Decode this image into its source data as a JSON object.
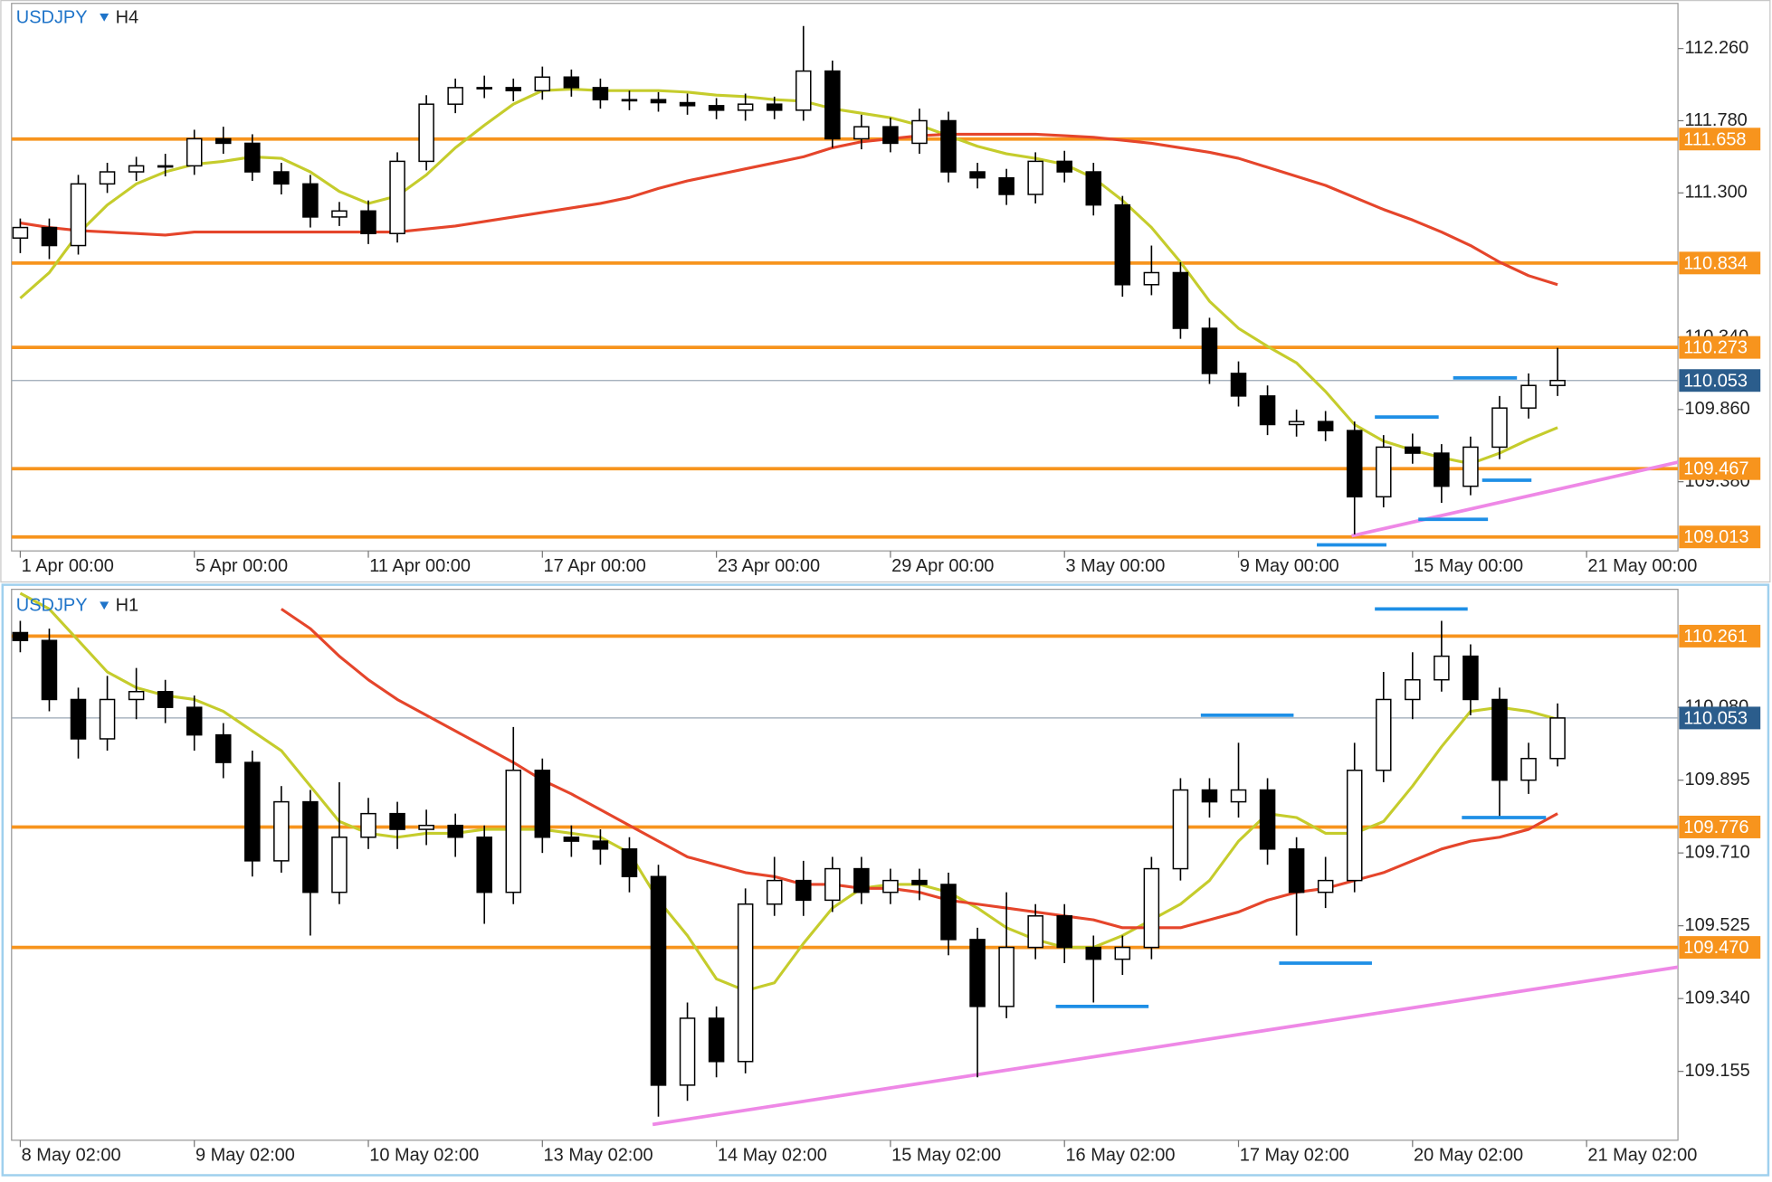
{
  "chart_data": [
    {
      "type": "candlestick",
      "symbol": "USDJPY",
      "timeframe": "H4",
      "xlim": [
        -0.3,
        57.15
      ],
      "xticks": [
        {
          "value": 0,
          "label": "1 Apr 00:00"
        },
        {
          "value": 6,
          "label": "5 Apr 00:00"
        },
        {
          "value": 12,
          "label": "11 Apr 00:00"
        },
        {
          "value": 18,
          "label": "17 Apr 00:00"
        },
        {
          "value": 24,
          "label": "23 Apr 00:00"
        },
        {
          "value": 30,
          "label": "29 Apr 00:00"
        },
        {
          "value": 36,
          "label": "3 May 00:00"
        },
        {
          "value": 42,
          "label": "9 May 00:00"
        },
        {
          "value": 48,
          "label": "15 May 00:00"
        },
        {
          "value": 54,
          "label": "21 May 00:00"
        }
      ],
      "ylim": [
        108.92,
        112.56
      ],
      "yticks": [
        {
          "value": 112.26,
          "label": "112.260"
        },
        {
          "value": 111.78,
          "label": "111.780"
        },
        {
          "value": 111.3,
          "label": "111.300"
        },
        {
          "value": 110.34,
          "label": "110.340"
        },
        {
          "value": 109.86,
          "label": "109.860"
        },
        {
          "value": 109.38,
          "label": "109.380"
        }
      ],
      "open": [
        111.0,
        111.07,
        110.95,
        111.36,
        111.44,
        111.48,
        111.48,
        111.66,
        111.63,
        111.44,
        111.36,
        111.14,
        111.18,
        111.03,
        111.51,
        111.89,
        112.0,
        112.0,
        111.98,
        112.07,
        112.0,
        111.92,
        111.92,
        111.9,
        111.88,
        111.85,
        111.89,
        111.85,
        112.11,
        111.66,
        111.74,
        111.63,
        111.78,
        111.44,
        111.4,
        111.29,
        111.51,
        111.44,
        111.22,
        110.69,
        110.77,
        110.4,
        110.1,
        109.95,
        109.76,
        109.78,
        109.72,
        109.28,
        109.61,
        109.57,
        109.35,
        109.61,
        109.87,
        110.02
      ],
      "high": [
        111.13,
        111.13,
        111.42,
        111.5,
        111.54,
        111.56,
        111.72,
        111.74,
        111.69,
        111.5,
        111.42,
        111.24,
        111.25,
        111.57,
        111.95,
        112.06,
        112.08,
        112.06,
        112.14,
        112.12,
        112.06,
        111.98,
        111.97,
        111.96,
        111.93,
        111.96,
        111.94,
        112.41,
        112.18,
        111.82,
        111.8,
        111.86,
        111.84,
        111.5,
        111.46,
        111.57,
        111.58,
        111.5,
        111.28,
        110.95,
        110.84,
        110.47,
        110.18,
        110.02,
        109.86,
        109.85,
        109.78,
        109.69,
        109.7,
        109.63,
        109.68,
        109.95,
        110.1,
        110.27
      ],
      "low": [
        110.9,
        110.86,
        110.89,
        111.3,
        111.38,
        111.41,
        111.42,
        111.56,
        111.38,
        111.29,
        111.07,
        111.08,
        110.96,
        110.97,
        111.45,
        111.83,
        111.93,
        111.91,
        111.92,
        111.94,
        111.86,
        111.85,
        111.84,
        111.82,
        111.79,
        111.78,
        111.79,
        111.78,
        111.6,
        111.59,
        111.57,
        111.56,
        111.37,
        111.33,
        111.22,
        111.23,
        111.37,
        111.15,
        110.61,
        110.62,
        110.33,
        110.03,
        109.88,
        109.69,
        109.68,
        109.65,
        109.03,
        109.21,
        109.5,
        109.24,
        109.29,
        109.53,
        109.8,
        109.95
      ],
      "close": [
        111.07,
        110.95,
        111.36,
        111.44,
        111.48,
        111.48,
        111.66,
        111.63,
        111.44,
        111.36,
        111.14,
        111.18,
        111.03,
        111.51,
        111.89,
        112.0,
        112.0,
        111.98,
        112.07,
        112.0,
        111.92,
        111.92,
        111.9,
        111.88,
        111.85,
        111.89,
        111.85,
        112.11,
        111.66,
        111.74,
        111.63,
        111.78,
        111.44,
        111.4,
        111.29,
        111.51,
        111.44,
        111.22,
        110.69,
        110.77,
        110.4,
        110.1,
        109.95,
        109.76,
        109.78,
        109.72,
        109.28,
        109.61,
        109.57,
        109.35,
        109.61,
        109.87,
        110.02,
        110.053
      ],
      "up_color": "#ffffff",
      "down_color": "#000000",
      "moving_averages": [
        {
          "color": "#c5cc2c",
          "values": [
            110.6,
            110.77,
            111.03,
            111.22,
            111.36,
            111.44,
            111.49,
            111.51,
            111.54,
            111.53,
            111.44,
            111.31,
            111.23,
            111.28,
            111.42,
            111.6,
            111.75,
            111.89,
            111.98,
            111.99,
            111.98,
            111.98,
            111.98,
            111.97,
            111.95,
            111.94,
            111.92,
            111.91,
            111.86,
            111.83,
            111.8,
            111.75,
            111.68,
            111.61,
            111.56,
            111.53,
            111.49,
            111.4,
            111.25,
            111.07,
            110.84,
            110.58,
            110.4,
            110.28,
            110.17,
            109.98,
            109.76,
            109.65,
            109.59,
            109.54,
            109.5,
            109.57,
            109.66,
            109.74
          ]
        },
        {
          "color": "#e5452b",
          "values": [
            111.1,
            111.07,
            111.05,
            111.04,
            111.03,
            111.02,
            111.04,
            111.04,
            111.04,
            111.04,
            111.04,
            111.04,
            111.04,
            111.04,
            111.06,
            111.08,
            111.11,
            111.14,
            111.17,
            111.2,
            111.23,
            111.27,
            111.33,
            111.38,
            111.42,
            111.46,
            111.5,
            111.54,
            111.6,
            111.64,
            111.66,
            111.68,
            111.69,
            111.69,
            111.69,
            111.69,
            111.68,
            111.67,
            111.65,
            111.63,
            111.6,
            111.57,
            111.53,
            111.47,
            111.41,
            111.35,
            111.27,
            111.19,
            111.12,
            111.04,
            110.95,
            110.84,
            110.75,
            110.69
          ]
        }
      ],
      "level_color": "#f7941d",
      "levels": [
        111.658,
        110.834,
        110.273,
        109.467,
        109.013
      ],
      "last": 110.053,
      "last_color": "#2b5d8c",
      "marker_color": "#1e8fe6",
      "markers": [
        {
          "value": 108.96,
          "x": [
            44.7,
            47.1
          ]
        },
        {
          "value": 109.13,
          "x": [
            48.2,
            50.6
          ]
        },
        {
          "value": 109.39,
          "x": [
            50.4,
            52.1
          ]
        },
        {
          "value": 109.81,
          "x": [
            46.7,
            48.9
          ]
        },
        {
          "value": 110.07,
          "x": [
            49.4,
            51.6
          ]
        }
      ],
      "trendline": {
        "color": "#ee88e6",
        "x": [
          45.9,
          57.15
        ],
        "y": [
          109.02,
          109.51
        ]
      }
    },
    {
      "type": "candlestick",
      "symbol": "USDJPY",
      "timeframe": "H1",
      "xlim": [
        -0.3,
        57.15
      ],
      "xticks": [
        {
          "value": 0,
          "label": "8 May 02:00"
        },
        {
          "value": 6,
          "label": "9 May 02:00"
        },
        {
          "value": 12,
          "label": "10 May 02:00"
        },
        {
          "value": 18,
          "label": "13 May 02:00"
        },
        {
          "value": 24,
          "label": "14 May 02:00"
        },
        {
          "value": 30,
          "label": "15 May 02:00"
        },
        {
          "value": 36,
          "label": "16 May 02:00"
        },
        {
          "value": 42,
          "label": "17 May 02:00"
        },
        {
          "value": 48,
          "label": "20 May 02:00"
        },
        {
          "value": 54,
          "label": "21 May 02:00"
        }
      ],
      "ylim": [
        108.98,
        110.38
      ],
      "yticks": [
        {
          "value": 110.08,
          "label": "110.080"
        },
        109.895,
        {
          "value": 109.71,
          "label": "109.710"
        },
        109.525,
        {
          "value": 109.34,
          "label": "109.340"
        },
        109.155
      ],
      "open": [
        110.27,
        110.25,
        110.1,
        110.0,
        110.1,
        110.12,
        110.08,
        110.01,
        109.94,
        109.69,
        109.84,
        109.61,
        109.75,
        109.81,
        109.77,
        109.78,
        109.75,
        109.61,
        109.92,
        109.75,
        109.74,
        109.72,
        109.65,
        109.12,
        109.29,
        109.18,
        109.58,
        109.64,
        109.59,
        109.67,
        109.61,
        109.64,
        109.63,
        109.49,
        109.32,
        109.47,
        109.55,
        109.47,
        109.44,
        109.47,
        109.67,
        109.87,
        109.84,
        109.87,
        109.72,
        109.61,
        109.64,
        109.92,
        110.1,
        110.15,
        110.21,
        110.1,
        109.895,
        109.95
      ],
      "high": [
        110.3,
        110.28,
        110.13,
        110.16,
        110.18,
        110.15,
        110.11,
        110.04,
        109.97,
        109.88,
        109.87,
        109.89,
        109.85,
        109.84,
        109.82,
        109.81,
        109.78,
        110.03,
        109.95,
        109.78,
        109.77,
        109.75,
        109.68,
        109.33,
        109.32,
        109.62,
        109.7,
        109.69,
        109.7,
        109.7,
        109.67,
        109.67,
        109.66,
        109.52,
        109.61,
        109.58,
        109.58,
        109.5,
        109.5,
        109.7,
        109.9,
        109.9,
        109.99,
        109.9,
        109.75,
        109.7,
        109.99,
        110.17,
        110.22,
        110.3,
        110.24,
        110.13,
        109.99,
        110.09
      ],
      "low": [
        110.22,
        110.07,
        109.95,
        109.97,
        110.05,
        110.04,
        109.97,
        109.9,
        109.65,
        109.66,
        109.5,
        109.58,
        109.72,
        109.72,
        109.73,
        109.7,
        109.53,
        109.58,
        109.71,
        109.7,
        109.68,
        109.61,
        109.04,
        109.08,
        109.14,
        109.15,
        109.55,
        109.55,
        109.56,
        109.58,
        109.58,
        109.59,
        109.45,
        109.14,
        109.29,
        109.44,
        109.43,
        109.33,
        109.4,
        109.44,
        109.64,
        109.8,
        109.8,
        109.68,
        109.5,
        109.57,
        109.61,
        109.89,
        110.05,
        110.12,
        110.06,
        109.8,
        109.86,
        109.93
      ],
      "close": [
        110.25,
        110.1,
        110.0,
        110.1,
        110.12,
        110.08,
        110.01,
        109.94,
        109.69,
        109.84,
        109.61,
        109.75,
        109.81,
        109.77,
        109.78,
        109.75,
        109.61,
        109.92,
        109.75,
        109.74,
        109.72,
        109.65,
        109.12,
        109.29,
        109.18,
        109.58,
        109.64,
        109.59,
        109.67,
        109.61,
        109.64,
        109.63,
        109.49,
        109.32,
        109.47,
        109.55,
        109.47,
        109.44,
        109.47,
        109.67,
        109.87,
        109.84,
        109.87,
        109.72,
        109.61,
        109.64,
        109.92,
        110.1,
        110.15,
        110.21,
        110.1,
        109.895,
        109.95,
        110.053
      ],
      "up_color": "#ffffff",
      "down_color": "#000000",
      "moving_averages": [
        {
          "color": "#c5cc2c",
          "values": [
            110.37,
            110.33,
            110.25,
            110.17,
            110.13,
            110.11,
            110.1,
            110.07,
            110.02,
            109.97,
            109.88,
            109.79,
            109.76,
            109.75,
            109.76,
            109.76,
            109.77,
            109.77,
            109.77,
            109.76,
            109.75,
            109.71,
            109.59,
            109.5,
            109.39,
            109.36,
            109.38,
            109.48,
            109.57,
            109.62,
            109.63,
            109.63,
            109.61,
            109.57,
            109.52,
            109.49,
            109.47,
            109.47,
            109.5,
            109.54,
            109.58,
            109.64,
            109.74,
            109.81,
            109.8,
            109.76,
            109.76,
            109.79,
            109.88,
            109.98,
            110.07,
            110.08,
            110.07,
            110.05
          ]
        },
        {
          "color": "#e5452b",
          "values": [
            null,
            null,
            null,
            null,
            null,
            null,
            null,
            null,
            null,
            110.33,
            110.28,
            110.21,
            110.15,
            110.1,
            110.06,
            110.02,
            109.98,
            109.94,
            109.895,
            109.86,
            109.82,
            109.78,
            109.74,
            109.7,
            109.68,
            109.66,
            109.65,
            109.63,
            109.63,
            109.62,
            109.62,
            109.61,
            109.59,
            109.58,
            109.57,
            109.56,
            109.55,
            109.54,
            109.52,
            109.52,
            109.52,
            109.54,
            109.56,
            109.59,
            109.61,
            109.62,
            109.64,
            109.66,
            109.69,
            109.72,
            109.74,
            109.75,
            109.77,
            109.81
          ]
        }
      ],
      "level_color": "#f7941d",
      "levels": [
        110.261,
        109.776,
        {
          "value": 109.47,
          "label": "109.470"
        }
      ],
      "last": 110.053,
      "last_color": "#2b5d8c",
      "marker_color": "#1e8fe6",
      "markers": [
        {
          "value": 110.33,
          "x": [
            46.7,
            49.9
          ]
        },
        {
          "value": 110.06,
          "x": [
            40.7,
            43.9
          ]
        },
        {
          "value": 109.8,
          "x": [
            49.7,
            52.6
          ]
        },
        {
          "value": 109.43,
          "x": [
            43.4,
            46.6
          ]
        },
        {
          "value": 109.32,
          "x": [
            35.7,
            38.9
          ]
        }
      ],
      "trendline": {
        "color": "#ee88e6",
        "x": [
          21.8,
          57.15
        ],
        "y": [
          109.02,
          109.42
        ]
      }
    }
  ]
}
